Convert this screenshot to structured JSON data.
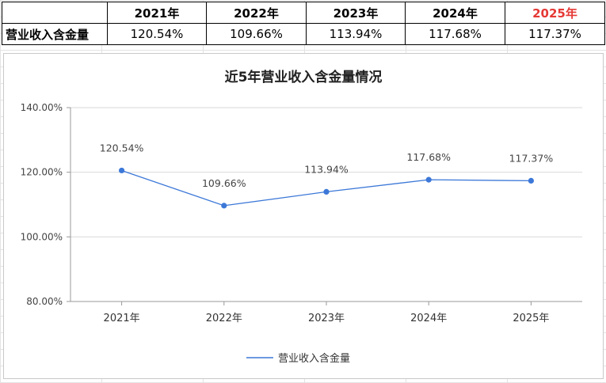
{
  "table": {
    "row_label": "营业收入含金量",
    "years": [
      "2021年",
      "2022年",
      "2023年",
      "2024年",
      "2025年"
    ],
    "values": [
      "120.54%",
      "109.66%",
      "113.94%",
      "117.68%",
      "117.37%"
    ],
    "highlight_year_color": "#e53935"
  },
  "chart_data": {
    "type": "line",
    "title": "近5年营业收入含金量情况",
    "categories": [
      "2021年",
      "2022年",
      "2023年",
      "2024年",
      "2025年"
    ],
    "series": [
      {
        "name": "营业收入含金量",
        "values": [
          120.54,
          109.66,
          113.94,
          117.68,
          117.37
        ],
        "labels": [
          "120.54%",
          "109.66%",
          "113.94%",
          "117.68%",
          "117.37%"
        ],
        "color": "#3c78d8"
      }
    ],
    "ylim": [
      80,
      140
    ],
    "yticks": [
      80,
      100,
      120,
      140
    ],
    "ytick_labels": [
      "80.00%",
      "100.00%",
      "120.00%",
      "140.00%"
    ],
    "grid": true,
    "legend": "bottom"
  }
}
